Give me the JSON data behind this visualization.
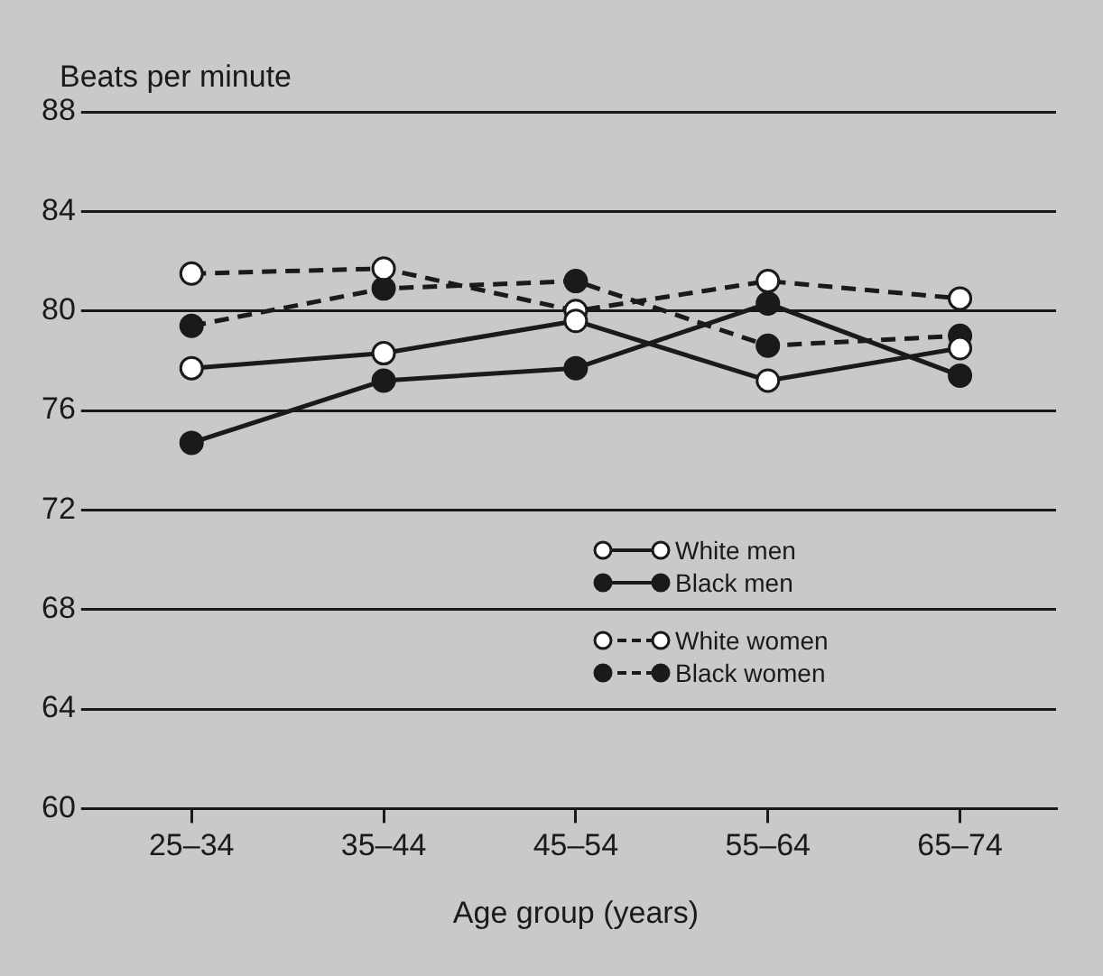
{
  "chart_data": {
    "type": "line",
    "ylabel": "Beats per minute",
    "xlabel": "Age group (years)",
    "categories": [
      "25–34",
      "35–44",
      "45–54",
      "55–64",
      "65–74"
    ],
    "series": [
      {
        "name": "White men",
        "color": "#ffffff",
        "line_style": "solid",
        "values": [
          77.7,
          78.3,
          79.6,
          77.2,
          78.5
        ]
      },
      {
        "name": "Black men",
        "color": "#1a1a1a",
        "line_style": "solid",
        "values": [
          74.7,
          77.2,
          77.7,
          80.3,
          77.4
        ]
      },
      {
        "name": "White women",
        "color": "#ffffff",
        "line_style": "dashed",
        "values": [
          81.5,
          81.7,
          80.0,
          81.2,
          80.5
        ]
      },
      {
        "name": "Black women",
        "color": "#1a1a1a",
        "line_style": "dashed",
        "values": [
          79.4,
          80.9,
          81.2,
          78.6,
          79.0
        ]
      }
    ],
    "ylim": [
      60,
      88
    ],
    "yticks": [
      60,
      64,
      68,
      72,
      76,
      80,
      84,
      88
    ],
    "grid": "y",
    "marker": "circle",
    "legend": "right"
  }
}
